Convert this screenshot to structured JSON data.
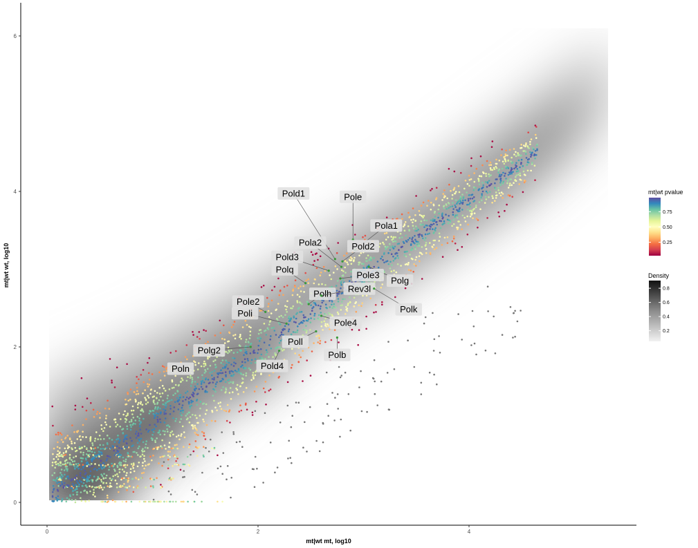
{
  "chart_data": {
    "type": "scatter",
    "title": "",
    "xlabel": "mt|wt mt, log10",
    "ylabel": "mt|wt wt, log10",
    "xlim": [
      -0.1,
      5.5
    ],
    "ylim": [
      -0.3,
      6.4
    ],
    "x_ticks": [
      "0",
      "2",
      "4"
    ],
    "x_tick_values": [
      0,
      2,
      4
    ],
    "y_ticks": [
      "0",
      "2",
      "4",
      "6"
    ],
    "y_tick_values": [
      0,
      2,
      4,
      6
    ],
    "grid": false,
    "color_legend": {
      "title": "mt|wt pvalue",
      "ticks": [
        "0.75",
        "0.50",
        "0.25"
      ],
      "tick_values": [
        0.75,
        0.5,
        0.25
      ],
      "palette": [
        "#9e0142",
        "#d53e4f",
        "#f46d43",
        "#fdae61",
        "#fee08b",
        "#ffffbf",
        "#e6f598",
        "#abdda4",
        "#66c2a5",
        "#3288bd",
        "#5e4fa2"
      ]
    },
    "density_legend": {
      "title": "Density",
      "ticks": [
        "0.8",
        "0.6",
        "0.4",
        "0.2"
      ],
      "tick_values": [
        0.8,
        0.6,
        0.4,
        0.2
      ]
    },
    "legend_position": "right",
    "labeled_points": [
      {
        "name": "Pold1",
        "x": 2.73,
        "y": 3.13
      },
      {
        "name": "Pole",
        "x": 2.9,
        "y": 3.38
      },
      {
        "name": "Pola2",
        "x": 2.79,
        "y": 3.03
      },
      {
        "name": "Pola1",
        "x": 2.92,
        "y": 3.25
      },
      {
        "name": "Pold3",
        "x": 2.67,
        "y": 2.98
      },
      {
        "name": "Pold2",
        "x": 2.8,
        "y": 3.1
      },
      {
        "name": "Polg",
        "x": 3.05,
        "y": 3.03
      },
      {
        "name": "Polq",
        "x": 2.45,
        "y": 2.82
      },
      {
        "name": "Pole3",
        "x": 2.78,
        "y": 2.88
      },
      {
        "name": "Polh",
        "x": 2.48,
        "y": 2.55
      },
      {
        "name": "Rev3l",
        "x": 2.6,
        "y": 2.66
      },
      {
        "name": "Polk",
        "x": 3.1,
        "y": 2.75
      },
      {
        "name": "Pole2",
        "x": 2.07,
        "y": 2.45
      },
      {
        "name": "Pole4",
        "x": 2.6,
        "y": 2.4
      },
      {
        "name": "Poli",
        "x": 2.27,
        "y": 2.3
      },
      {
        "name": "Poll",
        "x": 2.55,
        "y": 2.2
      },
      {
        "name": "Polb",
        "x": 2.75,
        "y": 2.12
      },
      {
        "name": "Polg2",
        "x": 1.93,
        "y": 2.0
      },
      {
        "name": "Pold4",
        "x": 2.2,
        "y": 1.95
      },
      {
        "name": "Poln",
        "x": 1.2,
        "y": 1.72
      }
    ]
  }
}
